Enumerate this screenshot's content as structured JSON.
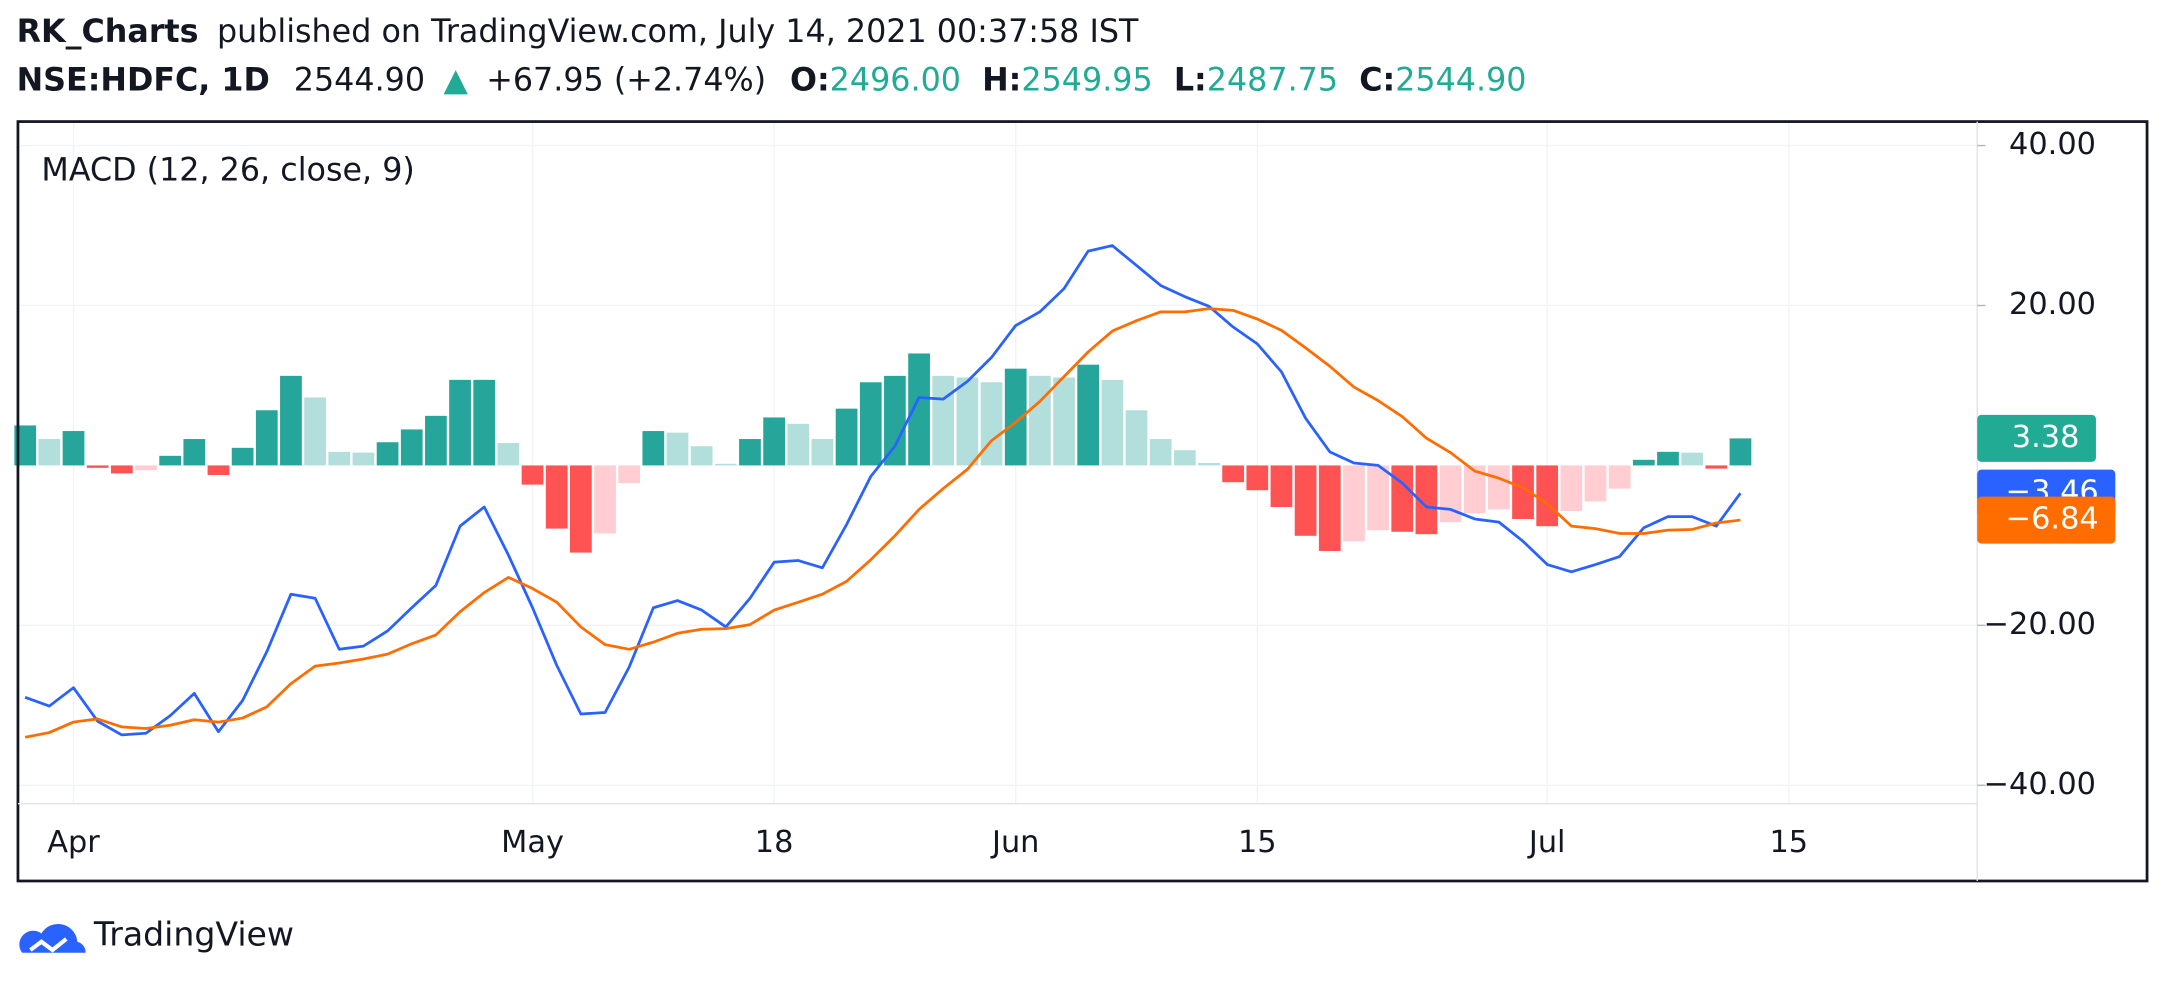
{
  "header": {
    "author": "RK_Charts",
    "published": "published on TradingView.com, July 14, 2021 00:37:58 IST",
    "symbol": "NSE:HDFC, 1D",
    "price": "2544.90",
    "change": "+67.95 (+2.74%)",
    "ohlc": [
      {
        "label": "O:",
        "value": "2496.00"
      },
      {
        "label": "H:",
        "value": "2549.95"
      },
      {
        "label": "L:",
        "value": "2487.75"
      },
      {
        "label": "C:",
        "value": "2544.90"
      }
    ]
  },
  "chart_data": {
    "type": "macd",
    "title": "MACD (12, 26, close, 9)",
    "xlim": [
      -0.3,
      80.8
    ],
    "xticks": [
      {
        "value": 2,
        "label": "Apr"
      },
      {
        "value": 21,
        "label": "May"
      },
      {
        "value": 31,
        "label": "18"
      },
      {
        "value": 41,
        "label": "Jun"
      },
      {
        "value": 51,
        "label": "15"
      },
      {
        "value": 63,
        "label": "Jul"
      },
      {
        "value": 73,
        "label": "15"
      }
    ],
    "ylim": [
      -42.3,
      43.0
    ],
    "yticks": [
      {
        "value": 40,
        "label": "40.00"
      },
      {
        "value": 20,
        "label": "20.00"
      },
      {
        "value": -20,
        "label": "−20.00"
      },
      {
        "value": -40,
        "label": "−40.00"
      }
    ],
    "grid": true,
    "histogram": {
      "colors": {
        "up_rising": "#26a69a",
        "up_falling": "#b2dfdb",
        "down_falling": "#ff5252",
        "down_rising": "#ffcdd2"
      },
      "label_color": "#22ab94",
      "last_label": "3.38",
      "values": [
        5.0,
        3.3,
        4.3,
        -0.3,
        -1.0,
        -0.6,
        1.2,
        3.3,
        -1.2,
        2.2,
        6.9,
        11.2,
        8.5,
        1.7,
        1.6,
        2.9,
        4.5,
        6.2,
        10.7,
        10.7,
        2.8,
        -2.4,
        -7.9,
        -10.9,
        -8.5,
        -2.2,
        4.3,
        4.1,
        2.4,
        0.2,
        3.3,
        6.0,
        5.2,
        3.3,
        7.1,
        10.4,
        11.2,
        14.0,
        11.2,
        11.0,
        10.4,
        12.1,
        11.2,
        11.0,
        12.6,
        10.7,
        6.9,
        3.3,
        1.9,
        0.3,
        -2.1,
        -3.1,
        -5.2,
        -8.8,
        -10.7,
        -9.5,
        -8.1,
        -8.3,
        -8.6,
        -7.1,
        -6.0,
        -5.5,
        -6.7,
        -7.6,
        -5.7,
        -4.5,
        -2.9,
        0.7,
        1.7,
        1.6,
        -0.4,
        3.38
      ]
    },
    "series": [
      {
        "color": "#2962ff",
        "last_label": "−3.46",
        "values": [
          -29.0,
          -30.1,
          -27.8,
          -32.0,
          -33.7,
          -33.5,
          -31.3,
          -28.5,
          -33.3,
          -29.4,
          -23.3,
          -16.1,
          -16.6,
          -23.0,
          -22.6,
          -20.7,
          -17.8,
          -15.0,
          -7.6,
          -5.2,
          -11.2,
          -17.8,
          -25.0,
          -31.1,
          -30.9,
          -25.2,
          -17.8,
          -16.9,
          -18.1,
          -20.2,
          -16.6,
          -12.1,
          -11.9,
          -12.8,
          -7.4,
          -1.4,
          2.4,
          8.5,
          8.3,
          10.5,
          13.5,
          17.5,
          19.2,
          22.1,
          26.8,
          27.5,
          25.0,
          22.5,
          21.1,
          19.9,
          17.3,
          15.2,
          11.7,
          5.9,
          1.7,
          0.3,
          0.0,
          -2.2,
          -5.2,
          -5.5,
          -6.7,
          -7.1,
          -9.5,
          -12.4,
          -13.3,
          -12.4,
          -11.4,
          -7.8,
          -6.4,
          -6.4,
          -7.6,
          -3.46
        ]
      },
      {
        "color": "#ff6d00",
        "last_label": "−6.84",
        "values": [
          -34.0,
          -33.4,
          -32.1,
          -31.7,
          -32.7,
          -32.9,
          -32.5,
          -31.8,
          -32.1,
          -31.6,
          -30.2,
          -27.3,
          -25.1,
          -24.7,
          -24.2,
          -23.6,
          -22.3,
          -21.2,
          -18.3,
          -15.9,
          -14.0,
          -15.4,
          -17.1,
          -20.2,
          -22.4,
          -23.0,
          -22.1,
          -21.0,
          -20.5,
          -20.4,
          -19.9,
          -18.1,
          -17.1,
          -16.1,
          -14.5,
          -11.8,
          -8.8,
          -5.5,
          -2.9,
          -0.5,
          3.1,
          5.4,
          8.0,
          11.1,
          14.2,
          16.8,
          18.1,
          19.2,
          19.2,
          19.6,
          19.4,
          18.3,
          16.9,
          14.7,
          12.4,
          9.8,
          8.1,
          6.1,
          3.4,
          1.6,
          -0.7,
          -1.6,
          -2.8,
          -4.8,
          -7.6,
          -7.9,
          -8.5,
          -8.5,
          -8.1,
          -8.0,
          -7.2,
          -6.84
        ]
      }
    ]
  },
  "footer": {
    "brand": "TradingView"
  }
}
